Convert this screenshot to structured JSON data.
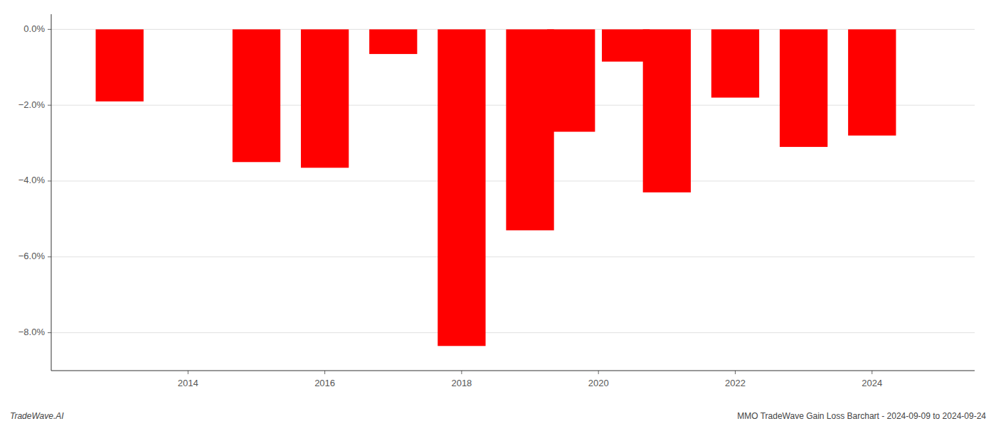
{
  "chart_data": {
    "type": "bar",
    "x": [
      2013,
      2015,
      2016,
      2017,
      2018,
      2019,
      2019.6,
      2020.4,
      2021,
      2022,
      2023,
      2024
    ],
    "values": [
      -1.9,
      -3.5,
      -3.65,
      -0.65,
      -8.35,
      -5.3,
      -2.7,
      -0.85,
      -4.3,
      -1.8,
      -3.1,
      -2.8
    ],
    "color": "#ff0000",
    "xlim": [
      2012.0,
      2025.5
    ],
    "xticks": [
      2014,
      2016,
      2018,
      2020,
      2022,
      2024
    ],
    "ylim": [
      -9.0,
      0.4
    ],
    "yticks": [
      {
        "value": 0.0,
        "label": "0.0%"
      },
      {
        "value": -2.0,
        "label": "−2.0%"
      },
      {
        "value": -4.0,
        "label": "−4.0%"
      },
      {
        "value": -6.0,
        "label": "−6.0%"
      },
      {
        "value": -8.0,
        "label": "−8.0%"
      }
    ],
    "grid": true,
    "annotations": [
      "TradeWave.AI",
      "MMO TradeWave Gain Loss Barchart - 2024-09-09 to 2024-09-24"
    ]
  }
}
